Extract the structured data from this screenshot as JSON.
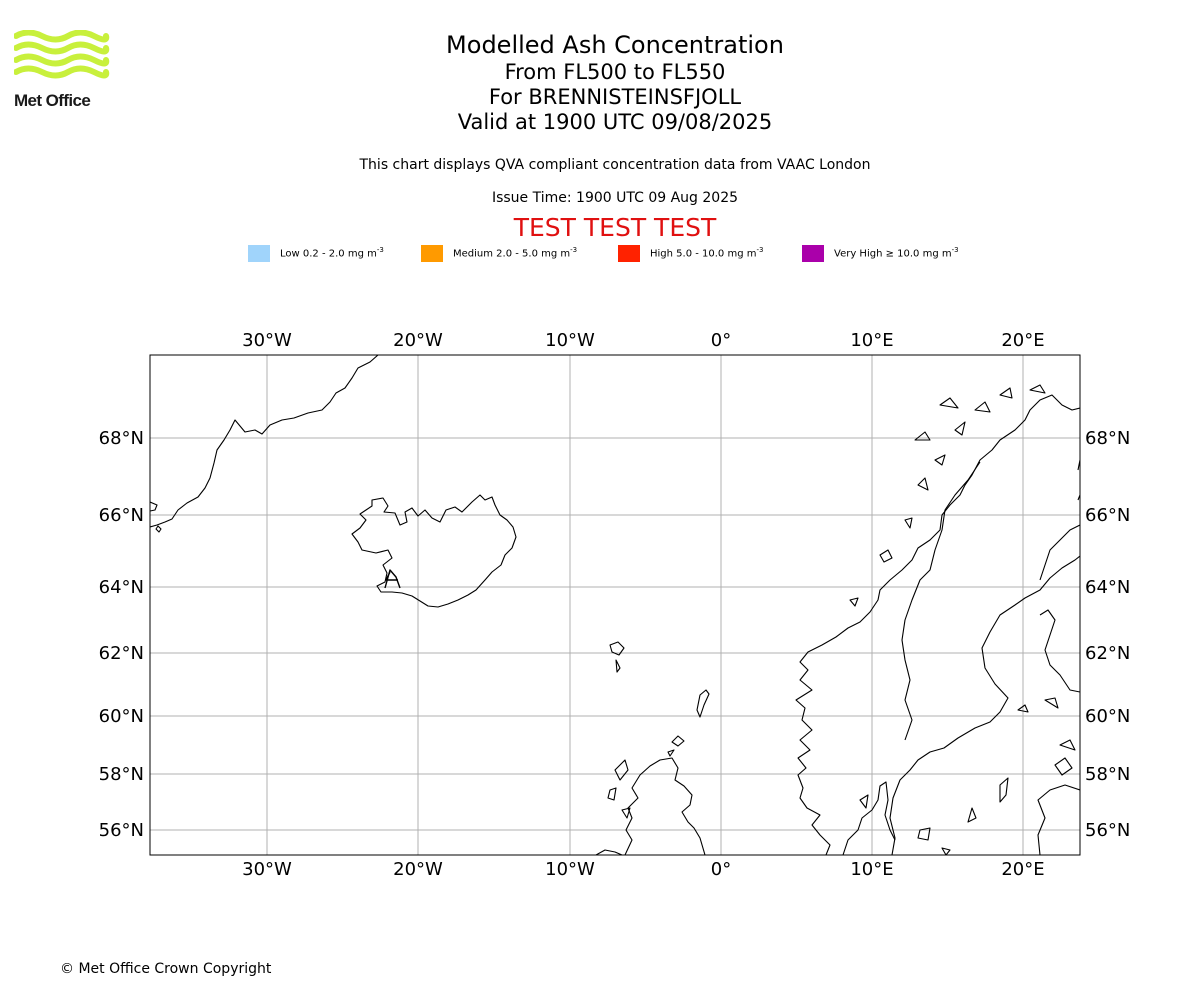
{
  "logo": {
    "text": "Met Office",
    "color": "#c8f03c"
  },
  "header": {
    "title": "Modelled Ash Concentration",
    "levels": "From FL500 to FL550",
    "volcano": "For BRENNISTEINSFJOLL",
    "valid": "Valid at 1900 UTC 09/08/2025",
    "subtitle": "This chart displays QVA compliant concentration data from VAAC London",
    "issue_time": "Issue Time: 1900 UTC 09 Aug 2025",
    "test_banner": "TEST TEST TEST"
  },
  "legend": [
    {
      "label_main": "Low 0.2 - 2.0 mg m",
      "exp": "-3",
      "color": "#a0d4fb"
    },
    {
      "label_main": "Medium 2.0 - 5.0 mg m",
      "exp": "-3",
      "color": "#ff9a00"
    },
    {
      "label_main": "High 5.0 - 10.0 mg m",
      "exp": "-3",
      "color": "#ff2200"
    },
    {
      "label_main": "Very High  ≥  10.0 mg m",
      "exp": "-3",
      "color": "#aa00aa"
    }
  ],
  "map": {
    "lon_labels": [
      "30°W",
      "20°W",
      "10°W",
      "0°",
      "10°E",
      "20°E"
    ],
    "lat_labels": [
      "68°N",
      "66°N",
      "64°N",
      "62°N",
      "60°N",
      "58°N",
      "56°N"
    ],
    "grid_color": "#b0b0b0"
  },
  "footer": {
    "copyright": "© Met Office Crown Copyright"
  }
}
